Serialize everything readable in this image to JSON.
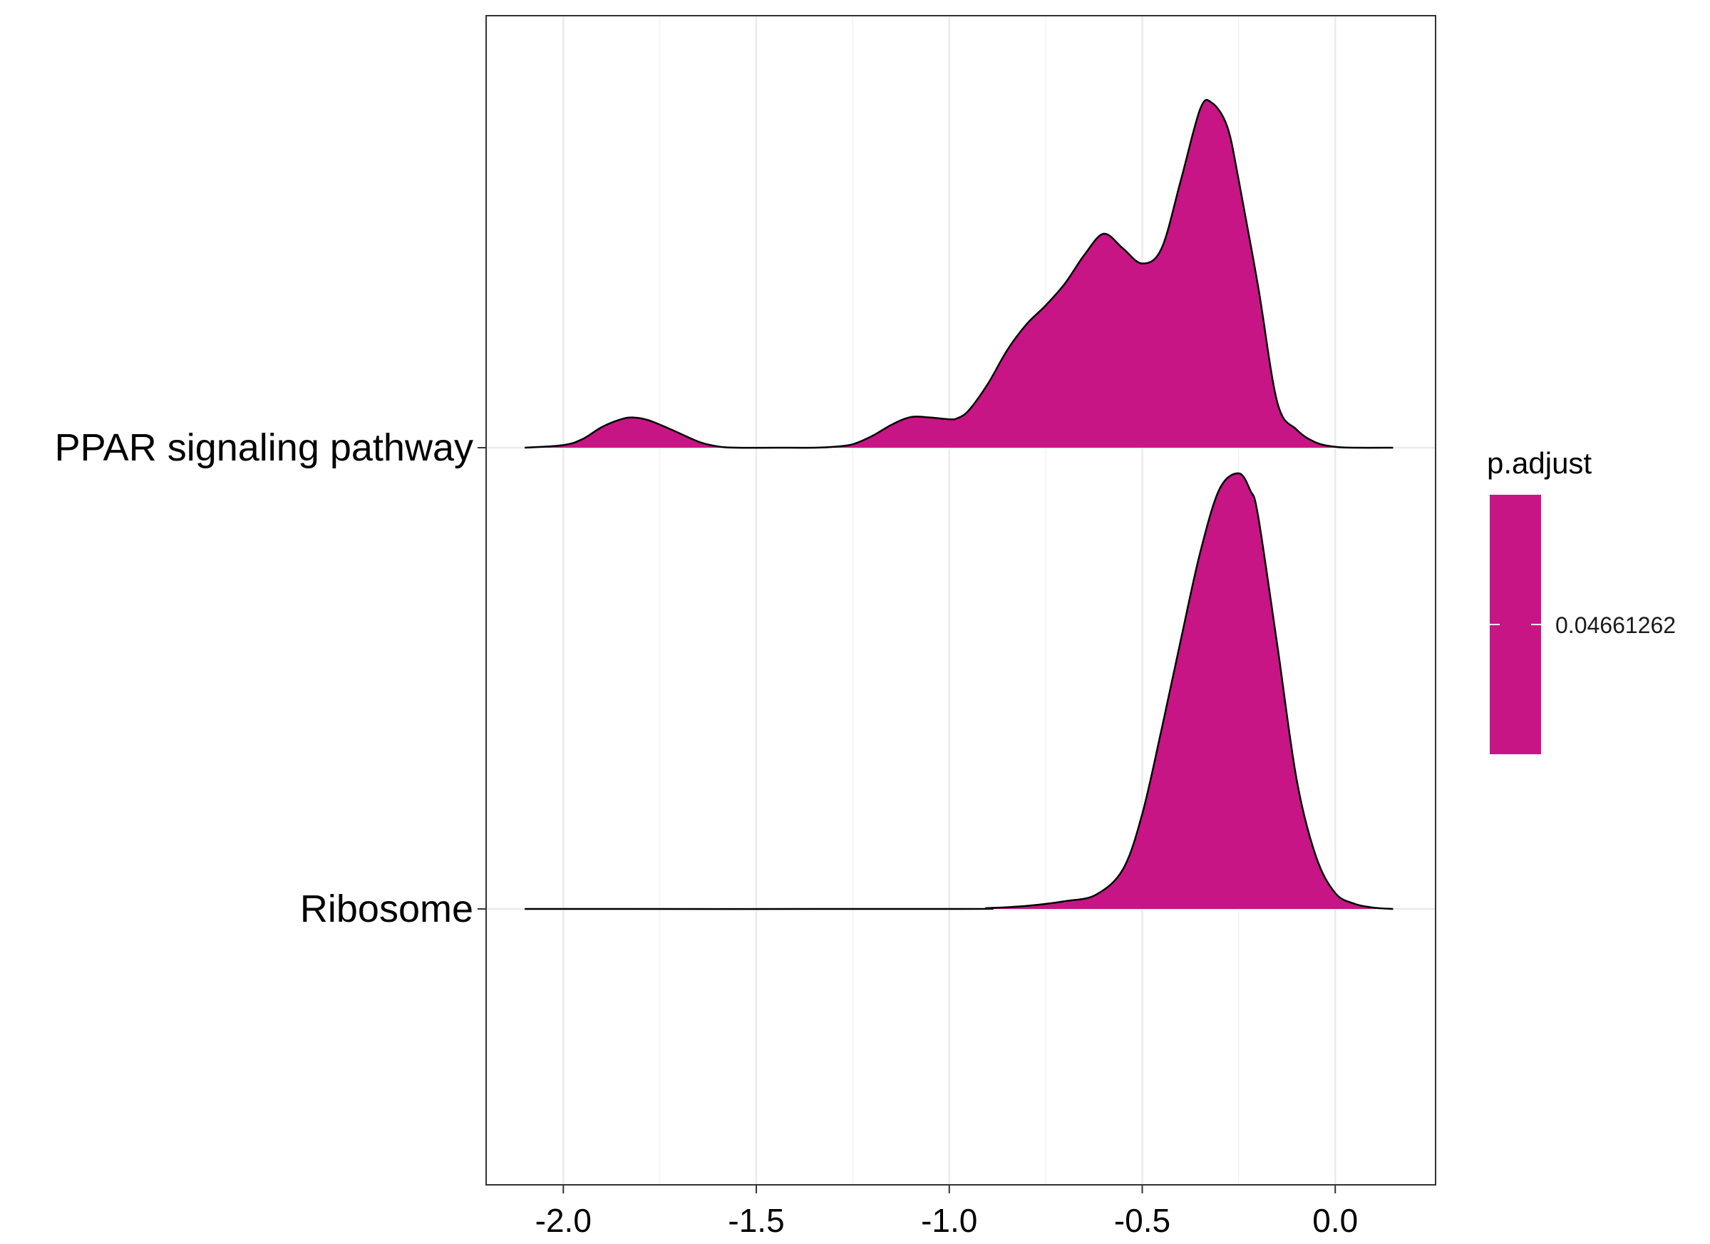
{
  "chart_data": {
    "type": "ridgeline",
    "title": "",
    "xlabel": "",
    "ylabel": "",
    "xlim": [
      -2.2,
      0.26
    ],
    "x_ticks": [
      -2.0,
      -1.5,
      -1.0,
      -0.5,
      0.0
    ],
    "x_tick_labels": [
      "-2.0",
      "-1.5",
      "-1.0",
      "-0.5",
      "0.0"
    ],
    "x_minor_ticks": [
      -1.75,
      -1.25,
      -0.75,
      -0.25
    ],
    "grid": true,
    "fill_color": "#C71585",
    "series": [
      {
        "name": "PPAR signaling pathway",
        "density": [
          [
            -2.1,
            0.0
          ],
          [
            -2.0,
            0.06
          ],
          [
            -1.95,
            0.2
          ],
          [
            -1.9,
            0.48
          ],
          [
            -1.85,
            0.66
          ],
          [
            -1.82,
            0.7
          ],
          [
            -1.78,
            0.64
          ],
          [
            -1.72,
            0.42
          ],
          [
            -1.65,
            0.14
          ],
          [
            -1.6,
            0.03
          ],
          [
            -1.55,
            0.0
          ],
          [
            -1.45,
            0.0
          ],
          [
            -1.35,
            0.0
          ],
          [
            -1.3,
            0.02
          ],
          [
            -1.25,
            0.08
          ],
          [
            -1.2,
            0.27
          ],
          [
            -1.15,
            0.53
          ],
          [
            -1.1,
            0.71
          ],
          [
            -1.05,
            0.7
          ],
          [
            -1.0,
            0.66
          ],
          [
            -0.98,
            0.68
          ],
          [
            -0.95,
            0.86
          ],
          [
            -0.9,
            1.48
          ],
          [
            -0.85,
            2.26
          ],
          [
            -0.8,
            2.86
          ],
          [
            -0.75,
            3.3
          ],
          [
            -0.7,
            3.81
          ],
          [
            -0.65,
            4.47
          ],
          [
            -0.6,
            4.96
          ],
          [
            -0.55,
            4.62
          ],
          [
            -0.5,
            4.27
          ],
          [
            -0.45,
            4.62
          ],
          [
            -0.4,
            6.2
          ],
          [
            -0.35,
            7.85
          ],
          [
            -0.32,
            8.0
          ],
          [
            -0.28,
            7.45
          ],
          [
            -0.25,
            6.2
          ],
          [
            -0.2,
            3.75
          ],
          [
            -0.15,
            1.05
          ],
          [
            -0.1,
            0.42
          ],
          [
            -0.05,
            0.12
          ],
          [
            0.0,
            0.02
          ],
          [
            0.05,
            0.0
          ],
          [
            0.15,
            0.0
          ]
        ]
      },
      {
        "name": "Ribosome",
        "density": [
          [
            -2.1,
            0.0
          ],
          [
            -1.0,
            0.0
          ],
          [
            -0.9,
            0.02
          ],
          [
            -0.8,
            0.07
          ],
          [
            -0.7,
            0.18
          ],
          [
            -0.62,
            0.33
          ],
          [
            -0.55,
            0.92
          ],
          [
            -0.5,
            2.2
          ],
          [
            -0.45,
            4.16
          ],
          [
            -0.4,
            6.24
          ],
          [
            -0.35,
            8.26
          ],
          [
            -0.3,
            9.73
          ],
          [
            -0.25,
            10.1
          ],
          [
            -0.22,
            9.7
          ],
          [
            -0.2,
            9.12
          ],
          [
            -0.15,
            6.11
          ],
          [
            -0.1,
            3.0
          ],
          [
            -0.05,
            1.22
          ],
          [
            0.0,
            0.37
          ],
          [
            0.05,
            0.12
          ],
          [
            0.1,
            0.03
          ],
          [
            0.15,
            0.0
          ]
        ]
      }
    ],
    "legend": {
      "title": "p.adjust",
      "placement": "right",
      "value_label": "0.04661262"
    }
  }
}
